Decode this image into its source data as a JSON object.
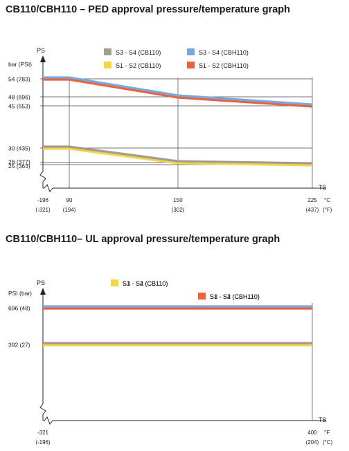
{
  "chart_data": [
    {
      "type": "line",
      "title": "CB110/CBH110 – PED approval pressure/temperature graph",
      "ylabel": "PS",
      "yunit": "bar (PSI)",
      "xlabel": "TS",
      "xunits": [
        "°C",
        "(°F)"
      ],
      "x_tick_labels": [
        [
          "-196",
          "(-321)"
        ],
        [
          "90",
          "(194)"
        ],
        [
          "150",
          "(302)"
        ],
        [
          "225",
          "(437)"
        ]
      ],
      "x_ticks": [
        -196,
        90,
        150,
        225
      ],
      "y_ticks": [
        {
          "value": 54,
          "label": "54  (783)"
        },
        {
          "value": 48,
          "label": "48  (696)"
        },
        {
          "value": 45,
          "label": "45  (653)"
        },
        {
          "value": 30,
          "label": "30  (435)"
        },
        {
          "value": 26,
          "label": "26  (377)"
        },
        {
          "value": 25,
          "label": "25  (363)"
        }
      ],
      "legend_position": "top",
      "series": [
        {
          "name": "S3 - S4   (CB110)",
          "color": "#a39a93",
          "x": [
            -196,
            90,
            150,
            225
          ],
          "y": [
            30,
            30,
            26,
            25
          ]
        },
        {
          "name": "S3 - S4   (CBH110)",
          "color": "#7aa7dc",
          "x": [
            -196,
            90,
            150,
            225
          ],
          "y": [
            54,
            54,
            48,
            45
          ]
        },
        {
          "name": "S1 - S2   (CB110)",
          "color": "#f2d54a",
          "x": [
            -196,
            90,
            150,
            225
          ],
          "y": [
            30,
            30,
            26,
            25
          ]
        },
        {
          "name": "S1 - S2   (CBH110)",
          "color": "#e8623c",
          "x": [
            -196,
            90,
            150,
            225
          ],
          "y": [
            54,
            54,
            48,
            45
          ]
        }
      ]
    },
    {
      "type": "line",
      "title": "CB110/CBH110– UL approval pressure/temperature graph",
      "ylabel": "PS",
      "yunit": "PSI  (bar)",
      "xlabel": "TS",
      "xunits": [
        "°F",
        "(°C)"
      ],
      "x_tick_labels": [
        [
          "-321",
          "(-196)"
        ],
        [
          "400",
          "(204)"
        ]
      ],
      "x_ticks": [
        -321,
        400
      ],
      "y_ticks": [
        {
          "value": 696,
          "label": "696 (48)"
        },
        {
          "value": 392,
          "label": "392 (27)"
        }
      ],
      "legend_position": "top",
      "series": [
        {
          "name": "S3 - S4   (CB110)",
          "color": "#a39a93",
          "x": [
            -321,
            400
          ],
          "y": [
            392,
            392
          ]
        },
        {
          "name": "S3 - S4   (CBH110)",
          "color": "#7aa7dc",
          "x": [
            -321,
            400
          ],
          "y": [
            696,
            696
          ]
        },
        {
          "name": "S1 - S2   (CB110)",
          "color": "#f2d54a",
          "x": [
            -321,
            400
          ],
          "y": [
            392,
            392
          ]
        },
        {
          "name": "S1 - S2   (CBH110)",
          "color": "#e8623c",
          "x": [
            -321,
            400
          ],
          "y": [
            696,
            696
          ]
        }
      ]
    }
  ]
}
